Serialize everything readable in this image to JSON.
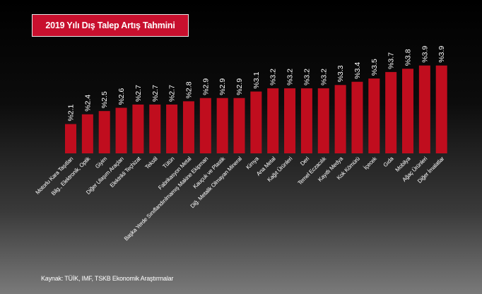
{
  "colors": {
    "bar": "#c00d1e",
    "title_bg": "#c8102e",
    "text": "#ffffff"
  },
  "chart_data": {
    "type": "bar",
    "title": "2019 Yılı Dış Talep Artış Tahmini",
    "categories": [
      "Motorlu Kara Taşıtları",
      "Bilg., Elektronik, Optik",
      "Giyim",
      "Diğer Ulaşım Araçları",
      "Elektrikli Teçhizat",
      "Tekstil",
      "Tütün",
      "Fabrikasyon Metal",
      "Başka Yerde Sınıflandırılmamış Makine Ekipman",
      "Kauçuk ve Plastik",
      "Diğ. Metalik Olmayan Mineral",
      "Kimya",
      "Ana Metal",
      "Kağıt Ürünleri",
      "Deri",
      "Temel Eczacılık",
      "Kayıtlı Medya",
      "Kok Kömürü",
      "İçecek",
      "Gıda",
      "Mobilya",
      "Ağaç Ürünleri",
      "Diğer İmalatlar"
    ],
    "values": [
      2.1,
      2.4,
      2.5,
      2.6,
      2.7,
      2.7,
      2.7,
      2.8,
      2.9,
      2.9,
      2.9,
      3.1,
      3.2,
      3.2,
      3.2,
      3.2,
      3.3,
      3.4,
      3.5,
      3.7,
      3.8,
      3.9,
      3.9
    ],
    "data_labels": [
      "%2.1",
      "%2.4",
      "%2.5",
      "%2.6",
      "%2.7",
      "%2.7",
      "%2.7",
      "%2.8",
      "%2.9",
      "%2.9",
      "%2.9",
      "%3.1",
      "%3.2",
      "%3.2",
      "%3.2",
      "%3.2",
      "%3.3",
      "%3.4",
      "%3.5",
      "%3.7",
      "%3.8",
      "%3.9",
      "%3.9"
    ],
    "ylim": [
      1.2,
      3.98
    ],
    "grid": false,
    "legend": "none"
  },
  "source": "Kaynak: TÜİK, IMF, TSKB Ekonomik Araştırmalar"
}
